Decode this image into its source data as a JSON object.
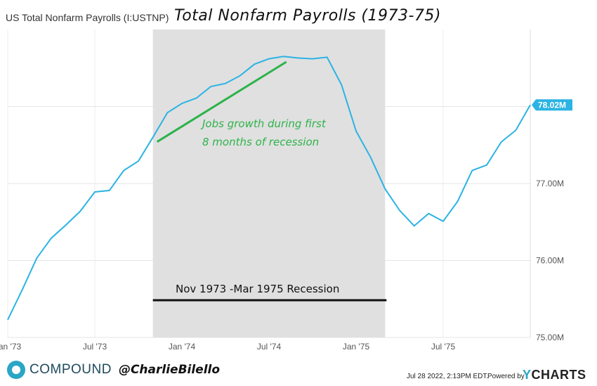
{
  "header": {
    "series_name": "US Total Nonfarm Payrolls (I:USTNP)",
    "chart_title": "Total Nonfarm Payrolls (1973-75)"
  },
  "colors": {
    "line": "#2bb3e3",
    "recession_shade": "#e0e0e0",
    "annotation_green": "#2db34a",
    "annotation_black": "#111111",
    "last_value_badge": "#2bb3e3"
  },
  "chart_data": {
    "type": "line",
    "title": "Total Nonfarm Payrolls (1973-75)",
    "series": [
      {
        "name": "US Total Nonfarm Payrolls (I:USTNP)",
        "x_months": [
          0,
          1,
          2,
          3,
          4,
          5,
          6,
          7,
          8,
          9,
          10,
          11,
          12,
          13,
          14,
          15,
          16,
          17,
          18,
          19,
          20,
          21,
          22,
          23,
          24,
          25,
          26,
          27,
          28,
          29,
          30,
          31,
          32,
          33,
          34,
          35,
          36
        ],
        "values_millions": [
          75.23,
          75.62,
          76.03,
          76.29,
          76.46,
          76.64,
          76.89,
          76.91,
          77.17,
          77.29,
          77.6,
          77.92,
          78.04,
          78.11,
          78.26,
          78.3,
          78.4,
          78.55,
          78.62,
          78.65,
          78.63,
          78.62,
          78.64,
          78.28,
          77.68,
          77.34,
          76.93,
          76.65,
          76.45,
          76.61,
          76.51,
          76.77,
          77.17,
          77.24,
          77.54,
          77.69,
          78.02
        ]
      }
    ],
    "x_tick_labels": [
      "Jan '73",
      "Jul '73",
      "Jan '74",
      "Jul '74",
      "Jan '75",
      "Jul '75"
    ],
    "x_tick_months": [
      0,
      6,
      12,
      18,
      24,
      30
    ],
    "y_tick_labels": [
      "77.00M",
      "76.00M",
      "75.00M"
    ],
    "y_tick_values": [
      77.0,
      76.0,
      75.0
    ],
    "ylim": [
      75.0,
      79.0
    ],
    "xlim_months": [
      0,
      36
    ],
    "last_value_label": "78.02M",
    "recession_shading": {
      "start_month": 10,
      "end_month": 26,
      "label": "Nov 1973 -Mar 1975 Recession"
    },
    "trend_annotation": {
      "start_month": 10,
      "start_value": 77.56,
      "end_month": 19,
      "end_value": 78.58,
      "text_line1": "Jobs growth during first",
      "text_line2": "8 months of recession"
    }
  },
  "footer": {
    "brand": "COMPOUND",
    "handle": "@CharlieBilello",
    "timestamp": "Jul 28 2022, 2:13PM EDT.",
    "powered_by": "Powered by",
    "provider_y": "Y",
    "provider_rest": "CHARTS"
  }
}
